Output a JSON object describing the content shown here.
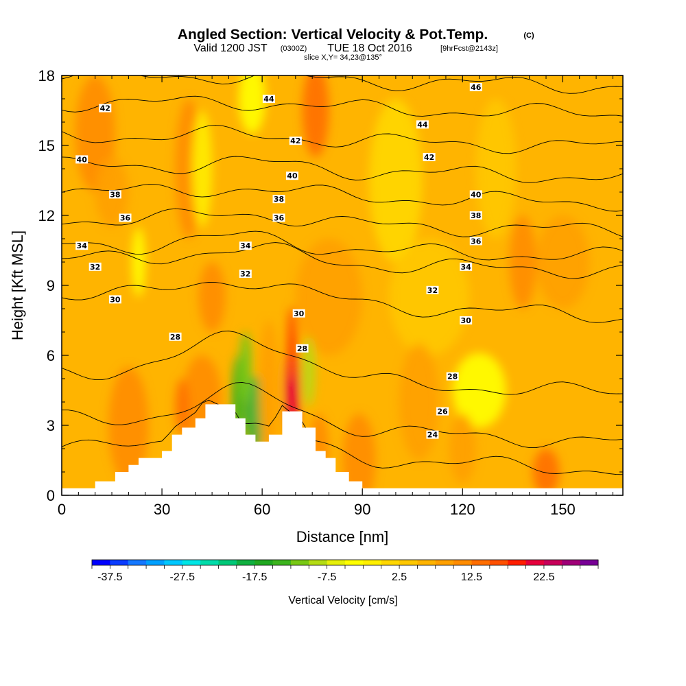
{
  "title": {
    "main": "Angled Section: Vertical Velocity & Pot.Temp.",
    "main_suffix": "(C)",
    "valid_prefix": "Valid 1200 JST",
    "valid_utc": "(0300Z)",
    "valid_date": "TUE 18 Oct 2016",
    "forecast": "[9hrFcst@2143z]",
    "slice": "slice X,Y= 34,23@135°"
  },
  "chart_data": {
    "type": "heatmap",
    "xlabel": "Distance [nm]",
    "ylabel": "Height [Kft MSL]",
    "xlim": [
      0,
      168
    ],
    "ylim": [
      0,
      18
    ],
    "x_ticks": [
      0,
      30,
      60,
      90,
      120,
      150
    ],
    "y_ticks": [
      0,
      3,
      6,
      9,
      12,
      15,
      18
    ],
    "background_value": 5,
    "colorbar": {
      "title": "Vertical Velocity [cm/s]",
      "min": -40,
      "max": 30,
      "step": 2.5,
      "tick_labels": [
        "-37.5",
        "-27.5",
        "-17.5",
        "-7.5",
        "2.5",
        "12.5",
        "22.5"
      ],
      "colors": [
        "#0000ff",
        "#0a3cff",
        "#1478ff",
        "#00a0ff",
        "#00c8ff",
        "#00e6e6",
        "#00dcaa",
        "#00c878",
        "#10b040",
        "#20a820",
        "#3cb41e",
        "#78c814",
        "#b4dc14",
        "#e6f00a",
        "#ffff00",
        "#fff000",
        "#ffd700",
        "#ffc800",
        "#ffb400",
        "#ffa000",
        "#ff8c00",
        "#ff6e00",
        "#ff5000",
        "#ff1e00",
        "#e6003c",
        "#c8005a",
        "#a00078",
        "#780096"
      ]
    },
    "terrain_profile": [
      {
        "x": 0,
        "h": 0.3
      },
      {
        "x": 10,
        "h": 0.6
      },
      {
        "x": 16,
        "h": 1.0
      },
      {
        "x": 20,
        "h": 1.3
      },
      {
        "x": 23,
        "h": 1.6
      },
      {
        "x": 30,
        "h": 1.9
      },
      {
        "x": 33,
        "h": 2.6
      },
      {
        "x": 36,
        "h": 2.9
      },
      {
        "x": 40,
        "h": 3.3
      },
      {
        "x": 43,
        "h": 3.9
      },
      {
        "x": 52,
        "h": 3.3
      },
      {
        "x": 55,
        "h": 2.6
      },
      {
        "x": 58,
        "h": 2.3
      },
      {
        "x": 62,
        "h": 2.6
      },
      {
        "x": 66,
        "h": 3.6
      },
      {
        "x": 72,
        "h": 2.9
      },
      {
        "x": 76,
        "h": 1.9
      },
      {
        "x": 79,
        "h": 1.6
      },
      {
        "x": 82,
        "h": 1.0
      },
      {
        "x": 86,
        "h": 0.6
      },
      {
        "x": 90,
        "h": 0.3
      },
      {
        "x": 168,
        "h": 0.3
      }
    ],
    "velocity_anomalies": [
      {
        "x": 10,
        "y": 15.5,
        "w": 6,
        "h": 2.5,
        "v": 10
      },
      {
        "x": 38,
        "y": 14.0,
        "w": 4,
        "h": 3.0,
        "v": 12
      },
      {
        "x": 57,
        "y": 17.0,
        "w": 4,
        "h": 1.5,
        "v": -5
      },
      {
        "x": 76,
        "y": 16.5,
        "w": 4,
        "h": 2.0,
        "v": 14
      },
      {
        "x": 42,
        "y": 14.0,
        "w": 3,
        "h": 2.5,
        "v": -2
      },
      {
        "x": 23,
        "y": 10.0,
        "w": 2,
        "h": 1.5,
        "v": -3
      },
      {
        "x": 45,
        "y": 8.5,
        "w": 4,
        "h": 1.5,
        "v": 12
      },
      {
        "x": 15,
        "y": 13.0,
        "w": 5,
        "h": 1.5,
        "v": 9
      },
      {
        "x": 100,
        "y": 13.5,
        "w": 8,
        "h": 3.5,
        "v": 2
      },
      {
        "x": 130,
        "y": 14.0,
        "w": 6,
        "h": 3.0,
        "v": 3
      },
      {
        "x": 150,
        "y": 10.0,
        "w": 8,
        "h": 2.0,
        "v": 9
      },
      {
        "x": 138,
        "y": 10.0,
        "w": 4,
        "h": 2.0,
        "v": 10
      },
      {
        "x": 110,
        "y": 8.5,
        "w": 12,
        "h": 2.5,
        "v": 3
      },
      {
        "x": 80,
        "y": 8.5,
        "w": 10,
        "h": 2.5,
        "v": 9
      },
      {
        "x": 125,
        "y": 4.5,
        "w": 8,
        "h": 1.6,
        "v": -3
      },
      {
        "x": 107,
        "y": 4.0,
        "w": 6,
        "h": 2.5,
        "v": 9
      },
      {
        "x": 120,
        "y": 2.0,
        "w": 4,
        "h": 1.5,
        "v": 9
      },
      {
        "x": 145,
        "y": 1.0,
        "w": 4,
        "h": 1.0,
        "v": 13
      },
      {
        "x": 42,
        "y": 4.0,
        "w": 6,
        "h": 2.0,
        "v": 11
      },
      {
        "x": 36,
        "y": 3.8,
        "w": 2,
        "h": 1.2,
        "v": 14
      },
      {
        "x": 53,
        "y": 4.0,
        "w": 2.2,
        "h": 2.0,
        "v": -15
      },
      {
        "x": 58,
        "y": 3.5,
        "w": 2.4,
        "h": 1.6,
        "v": -20
      },
      {
        "x": 55,
        "y": 5.5,
        "w": 2,
        "h": 1.5,
        "v": -12
      },
      {
        "x": 62,
        "y": 4.5,
        "w": 3,
        "h": 3.0,
        "v": 8
      },
      {
        "x": 69,
        "y": 4.6,
        "w": 2.2,
        "h": 2.2,
        "v": 22
      },
      {
        "x": 69,
        "y": 6.5,
        "w": 1.6,
        "h": 1.6,
        "v": 16
      },
      {
        "x": 74,
        "y": 5.3,
        "w": 1.8,
        "h": 1.5,
        "v": -9
      },
      {
        "x": 77,
        "y": 2.0,
        "w": 3,
        "h": 1.5,
        "v": 11
      },
      {
        "x": 20,
        "y": 3.0,
        "w": 6,
        "h": 2.5,
        "v": 10
      },
      {
        "x": 89,
        "y": 1.5,
        "w": 5,
        "h": 2.0,
        "v": 10
      }
    ],
    "theta_isolines": [
      {
        "value": 24,
        "base": 1.6,
        "bump": 1.2
      },
      {
        "value": 26,
        "base": 2.8,
        "bump": 1.5
      },
      {
        "value": 28,
        "base": 4.9,
        "bump": 1.8
      },
      {
        "value": 30,
        "base": 8.2,
        "bump": 0.9
      },
      {
        "value": 32,
        "base": 9.9,
        "bump": 0.6
      },
      {
        "value": 34,
        "base": 10.5,
        "bump": 0.5
      },
      {
        "value": 36,
        "base": 11.6,
        "bump": 0.4
      },
      {
        "value": 38,
        "base": 12.8,
        "bump": 0.3
      },
      {
        "value": 40,
        "base": 13.9,
        "bump": 0.3
      },
      {
        "value": 42,
        "base": 15.2,
        "bump": 0.2
      },
      {
        "value": 44,
        "base": 16.6,
        "bump": 0.2
      },
      {
        "value": 46,
        "base": 17.8,
        "bump": 0.1
      }
    ],
    "contour_labels": [
      {
        "t": "42",
        "x": 13,
        "y": 16.6
      },
      {
        "t": "44",
        "x": 62,
        "y": 17.0
      },
      {
        "t": "46",
        "x": 124,
        "y": 17.5
      },
      {
        "t": "40",
        "x": 6,
        "y": 14.4
      },
      {
        "t": "42",
        "x": 70,
        "y": 15.2
      },
      {
        "t": "44",
        "x": 108,
        "y": 15.9
      },
      {
        "t": "42",
        "x": 110,
        "y": 14.5
      },
      {
        "t": "40",
        "x": 69,
        "y": 13.7
      },
      {
        "t": "38",
        "x": 16,
        "y": 12.9
      },
      {
        "t": "38",
        "x": 65,
        "y": 12.7
      },
      {
        "t": "40",
        "x": 124,
        "y": 12.9
      },
      {
        "t": "36",
        "x": 19,
        "y": 11.9
      },
      {
        "t": "36",
        "x": 65,
        "y": 11.9
      },
      {
        "t": "38",
        "x": 124,
        "y": 12.0
      },
      {
        "t": "34",
        "x": 6,
        "y": 10.7
      },
      {
        "t": "34",
        "x": 55,
        "y": 10.7
      },
      {
        "t": "36",
        "x": 124,
        "y": 10.9
      },
      {
        "t": "32",
        "x": 10,
        "y": 9.8
      },
      {
        "t": "32",
        "x": 55,
        "y": 9.5
      },
      {
        "t": "34",
        "x": 121,
        "y": 9.8
      },
      {
        "t": "32",
        "x": 111,
        "y": 8.8
      },
      {
        "t": "30",
        "x": 16,
        "y": 8.4
      },
      {
        "t": "30",
        "x": 71,
        "y": 7.8
      },
      {
        "t": "30",
        "x": 121,
        "y": 7.5
      },
      {
        "t": "28",
        "x": 34,
        "y": 6.8
      },
      {
        "t": "28",
        "x": 72,
        "y": 6.3
      },
      {
        "t": "28",
        "x": 117,
        "y": 5.1
      },
      {
        "t": "26",
        "x": 114,
        "y": 3.6
      },
      {
        "t": "24",
        "x": 111,
        "y": 2.6
      }
    ]
  }
}
